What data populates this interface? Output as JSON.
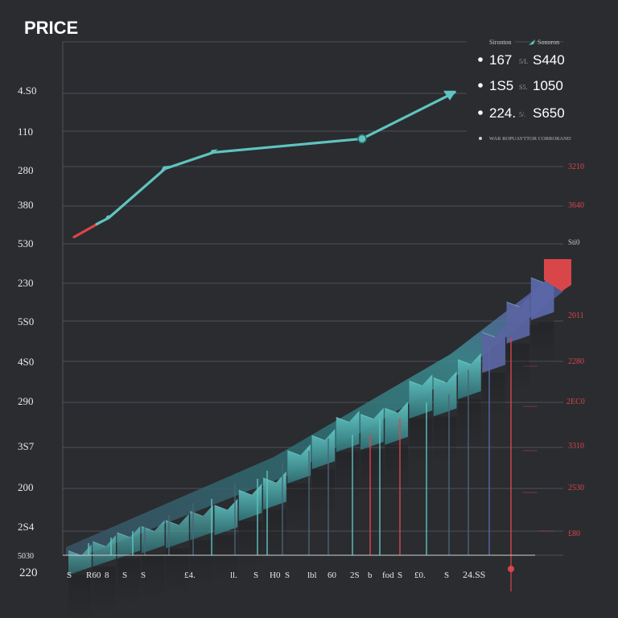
{
  "colors": {
    "background": "#2a2c30",
    "grid": "#5a5e64",
    "teal": "#5fc4c0",
    "teal_dark": "#2e6f73",
    "slate": "#4a6478",
    "indigo": "#5b67a8",
    "red": "#d9464a",
    "text": "#e8e8e8"
  },
  "chart_data": {
    "type": "line",
    "title": "PRICE",
    "y_ticks_left": [
      "4.S0",
      "110",
      "280",
      "380",
      "530",
      "230",
      "5S0",
      "4S0",
      "290",
      "3S7",
      "200",
      "2S4",
      "5030",
      "220"
    ],
    "y_ticks_right": [
      "3210",
      "3640",
      "Sti0",
      "2011",
      "2280",
      "2EC0",
      "3310",
      "2530",
      "£80"
    ],
    "x_ticks": [
      "S",
      "R60",
      "8",
      "S",
      "S",
      "£4.",
      "ll.",
      "S",
      "H0",
      "S",
      "lbl",
      "60",
      "2S",
      "b",
      "fod",
      "S",
      "£0.",
      "S",
      "24.SS"
    ],
    "legend": {
      "headers": [
        "Sironton",
        "Sonoron"
      ],
      "items": [
        {
          "left": "167",
          "mid": "5/L",
          "right": "S440"
        },
        {
          "left": "1S5",
          "mid": "S5.",
          "right": "1050"
        },
        {
          "left": "224.",
          "mid": "5/.",
          "right": "S650"
        }
      ],
      "footnote": "WAR ROPUAYTTOR CORRORAND"
    },
    "line_series": {
      "x": [
        0,
        1,
        2,
        3,
        4,
        5
      ],
      "y": [
        205,
        240,
        330,
        360,
        385,
        470
      ]
    },
    "bar_series": {
      "categories": [
        "1",
        "2",
        "3",
        "4",
        "5",
        "6",
        "7",
        "8",
        "9",
        "10",
        "11",
        "12",
        "13",
        "14",
        "15",
        "16",
        "17",
        "18",
        "19",
        "20"
      ],
      "values": [
        110,
        125,
        140,
        150,
        160,
        175,
        185,
        210,
        230,
        275,
        300,
        330,
        335,
        345,
        390,
        395,
        425,
        470,
        520,
        560
      ]
    }
  }
}
